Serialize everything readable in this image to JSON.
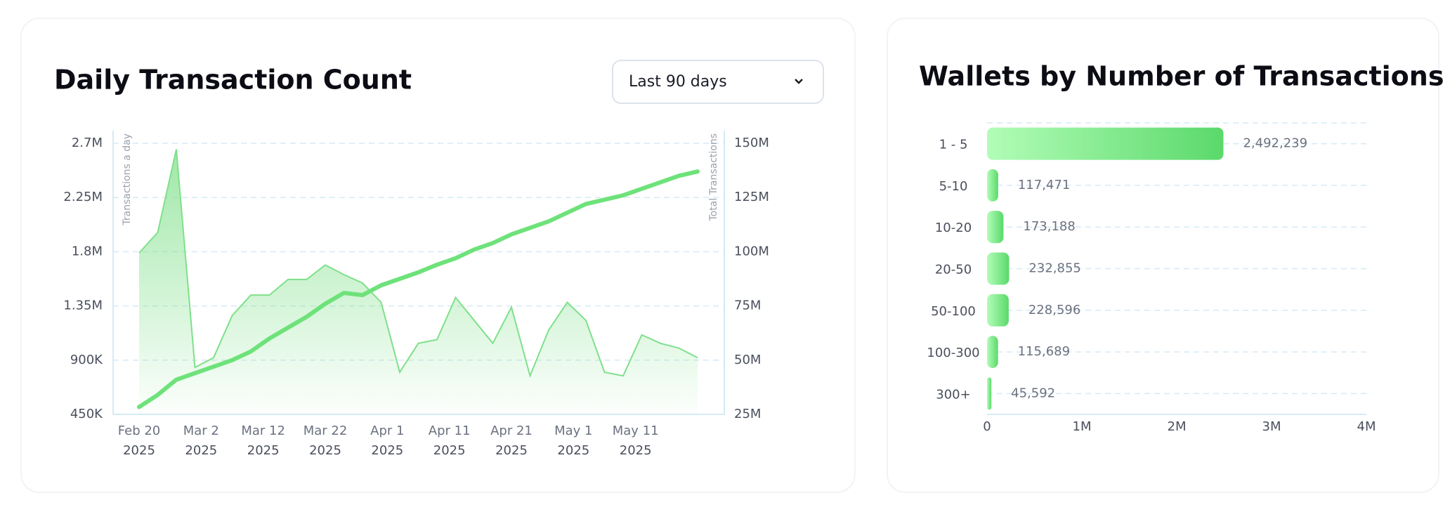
{
  "left": {
    "chart_data": {
      "type": "area-line",
      "title": "Daily Transaction Count",
      "dropdown": "Last 90 days",
      "y_label": "Transactions a day",
      "y2_label": "Total Transactions",
      "x": [
        "2025-02-20",
        "2025-02-23",
        "2025-02-26",
        "2025-03-01",
        "2025-03-04",
        "2025-03-07",
        "2025-03-10",
        "2025-03-13",
        "2025-03-16",
        "2025-03-19",
        "2025-03-22",
        "2025-03-25",
        "2025-03-28",
        "2025-03-31",
        "2025-04-03",
        "2025-04-06",
        "2025-04-09",
        "2025-04-12",
        "2025-04-15",
        "2025-04-18",
        "2025-04-21",
        "2025-04-24",
        "2025-04-27",
        "2025-04-30",
        "2025-05-03",
        "2025-05-06",
        "2025-05-09",
        "2025-05-12",
        "2025-05-15",
        "2025-05-18",
        "2025-05-21"
      ],
      "series": [
        {
          "name": "Transactions a day",
          "color": "#7fe08a",
          "values": [
            1790000,
            1960000,
            2650000,
            840000,
            920000,
            1270000,
            1440000,
            1440000,
            1570000,
            1570000,
            1690000,
            1610000,
            1540000,
            1380000,
            800000,
            1040000,
            1070000,
            1420000,
            1230000,
            1040000,
            1340000,
            770000,
            1150000,
            1380000,
            1230000,
            800000,
            770000,
            1110000,
            1040000,
            1000000,
            920000
          ]
        },
        {
          "name": "Total Transactions",
          "color": "#6ee27a",
          "axis": "y2",
          "values": [
            28400000,
            34000000,
            41000000,
            44000000,
            47000000,
            50000000,
            54000000,
            60000000,
            65000000,
            70000000,
            76000000,
            81000000,
            80000000,
            84500000,
            87500000,
            90500000,
            94000000,
            97000000,
            101000000,
            104000000,
            108000000,
            111000000,
            114000000,
            118000000,
            122000000,
            124000000,
            126000000,
            129000000,
            132000000,
            135000000,
            137000000
          ]
        }
      ],
      "ylim": [
        450000,
        2700000
      ],
      "yticks": [
        {
          "value": 450000,
          "label": "450K"
        },
        {
          "value": 900000,
          "label": "900K"
        },
        {
          "value": 1350000,
          "label": "1.35M"
        },
        {
          "value": 1800000,
          "label": "1.8M"
        },
        {
          "value": 2250000,
          "label": "2.25M"
        },
        {
          "value": 2700000,
          "label": "2.7M"
        }
      ],
      "y2lim": [
        25000000,
        150000000
      ],
      "y2ticks": [
        {
          "value": 25000000,
          "label": "25M"
        },
        {
          "value": 50000000,
          "label": "50M"
        },
        {
          "value": 75000000,
          "label": "75M"
        },
        {
          "value": 100000000,
          "label": "100M"
        },
        {
          "value": 125000000,
          "label": "125M"
        },
        {
          "value": 150000000,
          "label": "150M"
        }
      ],
      "xticks": [
        {
          "value": "2025-02-20",
          "label": [
            "Feb 20",
            "2025"
          ]
        },
        {
          "value": "2025-03-02",
          "label": [
            "Mar 2",
            "2025"
          ]
        },
        {
          "value": "2025-03-12",
          "label": [
            "Mar 12",
            "2025"
          ]
        },
        {
          "value": "2025-03-22",
          "label": [
            "Mar 22",
            "2025"
          ]
        },
        {
          "value": "2025-04-01",
          "label": [
            "Apr 1",
            "2025"
          ]
        },
        {
          "value": "2025-04-11",
          "label": [
            "Apr 11",
            "2025"
          ]
        },
        {
          "value": "2025-04-21",
          "label": [
            "Apr 21",
            "2025"
          ]
        },
        {
          "value": "2025-05-01",
          "label": [
            "May 1",
            "2025"
          ]
        },
        {
          "value": "2025-05-11",
          "label": [
            "May 11",
            "2025"
          ]
        }
      ],
      "grid": true
    }
  },
  "right": {
    "chart_data": {
      "type": "hbar",
      "title": "Wallets by Number of Transactions",
      "categories": [
        "1 - 5",
        "5-10",
        "10-20",
        "20-50",
        "50-100",
        "100-300",
        "300+"
      ],
      "values": [
        2492239,
        117471,
        173188,
        232855,
        228596,
        115689,
        45592
      ],
      "value_labels": [
        "2,492,239",
        "117,471",
        "173,188",
        "232,855",
        "228,596",
        "115,689",
        "45,592"
      ],
      "color": "#5bd96a",
      "xlim": [
        0,
        4000000
      ],
      "xticks": [
        0,
        {
          "value": 1000000,
          "label": "1M"
        },
        {
          "value": 2000000,
          "label": "2M"
        },
        {
          "value": 3000000,
          "label": "3M"
        },
        {
          "value": 4000000,
          "label": "4M"
        }
      ],
      "grid": true
    }
  }
}
